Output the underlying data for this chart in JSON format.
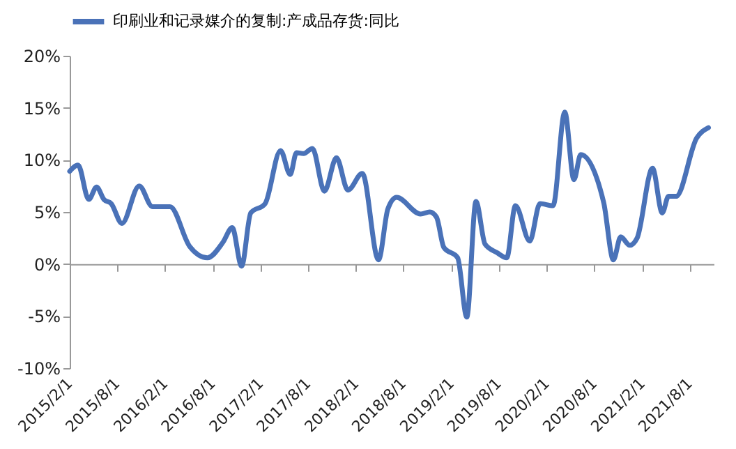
{
  "chart_data": {
    "type": "line",
    "x": [
      "2015-02-01",
      "2015-03-05",
      "2015-04-15",
      "2015-05-15",
      "2015-06-12",
      "2015-07-10",
      "2015-08-20",
      "2015-10-25",
      "2015-12-15",
      "2016-02-20",
      "2016-05-05",
      "2016-07-12",
      "2016-09-10",
      "2016-10-15",
      "2016-11-20",
      "2016-12-25",
      "2017-02-18",
      "2017-04-18",
      "2017-05-25",
      "2017-06-18",
      "2017-07-15",
      "2017-08-18",
      "2017-10-03",
      "2017-11-18",
      "2018-01-01",
      "2018-02-25",
      "2018-04-28",
      "2018-06-03",
      "2018-07-06",
      "2018-10-06",
      "2018-11-10",
      "2018-12-06",
      "2019-01-03",
      "2019-02-25",
      "2019-04-01",
      "2019-05-06",
      "2019-06-10",
      "2019-07-25",
      "2019-09-01",
      "2019-10-04",
      "2019-11-28",
      "2020-01-06",
      "2020-02-25",
      "2020-04-10",
      "2020-05-15",
      "2020-06-10",
      "2020-09-06",
      "2020-10-13",
      "2020-11-10",
      "2020-12-15",
      "2021-01-12",
      "2021-03-12",
      "2021-04-18",
      "2021-05-12",
      "2021-06-10",
      "2021-08-28",
      "2021-10-12"
    ],
    "series": [
      {
        "name": "印刷业和记录媒介的复制:产成品存货:同比",
        "color": "#4a72b8",
        "values": [
          8.9,
          9.5,
          6.2,
          7.4,
          6.2,
          5.8,
          3.9,
          7.5,
          5.5,
          5.5,
          1.7,
          0.6,
          2.1,
          3.5,
          -0.2,
          4.9,
          5.8,
          10.9,
          8.6,
          10.7,
          10.6,
          11.1,
          7.0,
          10.2,
          7.1,
          8.7,
          0.4,
          5.3,
          6.4,
          4.8,
          5.0,
          4.5,
          1.6,
          0.6,
          -5.1,
          6.0,
          1.9,
          1.1,
          0.6,
          5.6,
          2.2,
          5.8,
          5.6,
          14.6,
          8.1,
          10.5,
          5.9,
          0.4,
          2.6,
          1.8,
          2.5,
          9.2,
          4.9,
          6.5,
          6.5,
          12.1,
          13.1
        ]
      }
    ],
    "xlim": [
      "2015-02-01",
      "2021-11-01"
    ],
    "xticks": [
      {
        "value": "2015-02-01",
        "label": "2015/2/1"
      },
      {
        "value": "2015-08-01",
        "label": "2015/8/1"
      },
      {
        "value": "2016-02-01",
        "label": "2016/2/1"
      },
      {
        "value": "2016-08-01",
        "label": "2016/8/1"
      },
      {
        "value": "2017-02-01",
        "label": "2017/2/1"
      },
      {
        "value": "2017-08-01",
        "label": "2017/8/1"
      },
      {
        "value": "2018-02-01",
        "label": "2018/2/1"
      },
      {
        "value": "2018-08-01",
        "label": "2018/8/1"
      },
      {
        "value": "2019-02-01",
        "label": "2019/2/1"
      },
      {
        "value": "2019-08-01",
        "label": "2019/8/1"
      },
      {
        "value": "2020-02-01",
        "label": "2020/2/1"
      },
      {
        "value": "2020-08-01",
        "label": "2020/8/1"
      },
      {
        "value": "2021-02-01",
        "label": "2021/2/1"
      },
      {
        "value": "2021-08-01",
        "label": "2021/8/1"
      }
    ],
    "ylim": [
      -10,
      20
    ],
    "yticks": [
      {
        "value": -10,
        "label": "-10%"
      },
      {
        "value": -5,
        "label": "-5%"
      },
      {
        "value": 0,
        "label": "0%"
      },
      {
        "value": 5,
        "label": "5%"
      },
      {
        "value": 10,
        "label": "10%"
      },
      {
        "value": 15,
        "label": "15%"
      },
      {
        "value": 20,
        "label": "20%"
      }
    ],
    "legend": "top",
    "marker": "none",
    "line_style": "solid"
  }
}
